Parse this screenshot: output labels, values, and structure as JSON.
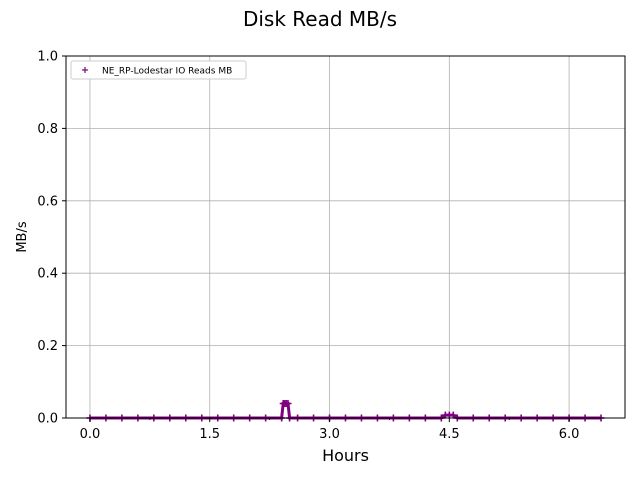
{
  "chart_data": {
    "type": "scatter",
    "title": "Disk Read MB/s",
    "xlabel": "Hours",
    "ylabel": "MB/s",
    "xlim": [
      -0.3,
      6.7
    ],
    "ylim": [
      0,
      1.0
    ],
    "xticks": [
      0.0,
      1.5,
      3.0,
      4.5,
      6.0
    ],
    "xtick_labels": [
      "0.0",
      "1.5",
      "3.0",
      "4.5",
      "6.0"
    ],
    "yticks": [
      0.0,
      0.2,
      0.4,
      0.6,
      0.8,
      1.0
    ],
    "ytick_labels": [
      "0.0",
      "0.2",
      "0.4",
      "0.6",
      "0.8",
      "1.0"
    ],
    "grid": true,
    "legend_position": "upper-left",
    "series": [
      {
        "name": "NE_RP-Lodestar IO Reads MB",
        "color": "#800080",
        "marker": "plus",
        "x": [
          0.0,
          0.2,
          0.4,
          0.6,
          0.8,
          1.0,
          1.2,
          1.4,
          1.6,
          1.8,
          2.0,
          2.2,
          2.4,
          2.42,
          2.44,
          2.46,
          2.48,
          2.5,
          2.6,
          2.8,
          3.0,
          3.2,
          3.4,
          3.6,
          3.8,
          4.0,
          4.2,
          4.4,
          4.45,
          4.5,
          4.55,
          4.6,
          4.8,
          5.0,
          5.2,
          5.4,
          5.6,
          5.8,
          6.0,
          6.2,
          6.4
        ],
        "y": [
          0.0,
          0.0,
          0.0,
          0.0,
          0.0,
          0.0,
          0.0,
          0.0,
          0.0,
          0.0,
          0.0,
          0.0,
          0.0,
          0.04,
          0.04,
          0.04,
          0.04,
          0.0,
          0.0,
          0.0,
          0.0,
          0.0,
          0.0,
          0.0,
          0.0,
          0.0,
          0.0,
          0.0,
          0.008,
          0.008,
          0.008,
          0.0,
          0.0,
          0.0,
          0.0,
          0.0,
          0.0,
          0.0,
          0.0,
          0.0,
          0.0
        ]
      }
    ]
  }
}
